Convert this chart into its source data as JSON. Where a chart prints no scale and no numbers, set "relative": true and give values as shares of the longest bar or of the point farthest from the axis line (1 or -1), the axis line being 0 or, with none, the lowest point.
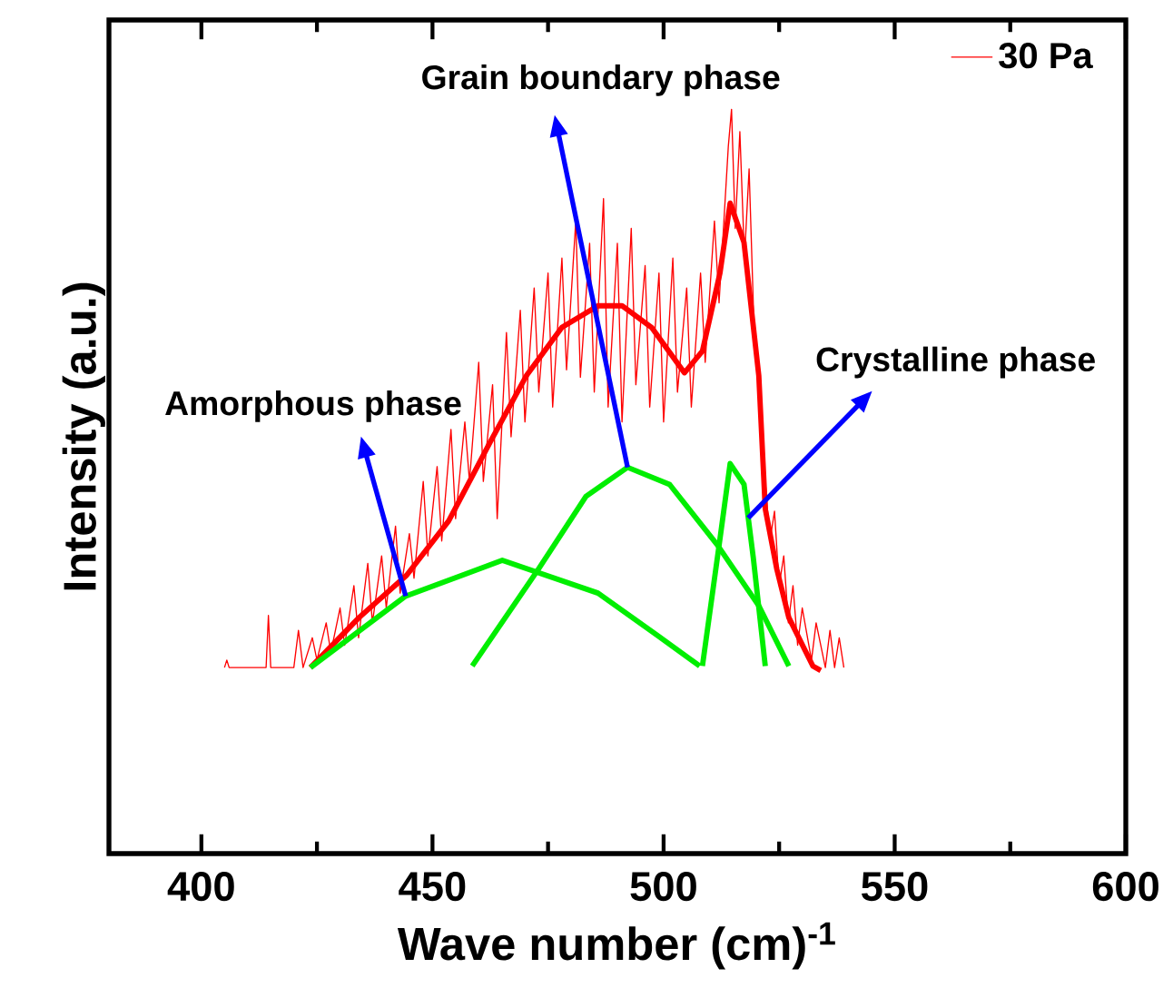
{
  "chart_data": {
    "type": "line",
    "relative": true,
    "xlabel": "Wave number (cm)$^{-1}$",
    "ylabel": "Intensity (a.u.)",
    "xlim": [
      380,
      600
    ],
    "xticks": [
      400,
      {
        "value": 425,
        "label": null
      },
      450,
      {
        "value": 475,
        "label": null
      },
      500,
      {
        "value": 525,
        "label": null
      },
      550,
      {
        "value": 575,
        "label": null
      },
      600
    ],
    "legend": "top right",
    "grid": false,
    "series": [
      {
        "name": "30 Pa",
        "color": "#ff0000",
        "x": [
          405,
          405.5,
          406,
          414,
          414.5,
          415,
          420,
          421,
          422,
          424,
          425,
          427,
          428,
          430,
          431,
          433,
          434,
          436,
          437,
          439,
          440,
          442,
          443,
          445,
          446,
          448,
          449,
          451,
          452,
          454,
          455,
          457,
          458,
          460,
          461,
          463,
          464,
          466,
          467,
          469,
          470,
          472,
          473,
          475,
          476,
          478,
          479,
          481,
          482,
          484,
          485,
          487,
          488,
          490,
          491,
          493,
          494,
          496,
          497,
          499,
          500,
          502,
          503,
          505,
          506,
          508,
          509,
          511,
          512,
          514,
          514.7,
          515.5,
          516.5,
          517.5,
          518.5,
          519.5,
          521,
          522,
          523,
          524,
          525,
          526,
          527,
          528,
          529,
          530,
          532,
          533,
          535,
          536,
          537,
          538,
          539
        ],
        "values": [
          0.25,
          0.26,
          0.25,
          0.25,
          0.32,
          0.25,
          0.25,
          0.3,
          0.25,
          0.29,
          0.26,
          0.31,
          0.27,
          0.33,
          0.28,
          0.36,
          0.29,
          0.39,
          0.31,
          0.4,
          0.33,
          0.44,
          0.35,
          0.43,
          0.37,
          0.5,
          0.4,
          0.52,
          0.42,
          0.57,
          0.45,
          0.58,
          0.5,
          0.66,
          0.5,
          0.63,
          0.45,
          0.7,
          0.56,
          0.73,
          0.58,
          0.76,
          0.62,
          0.78,
          0.6,
          0.8,
          0.65,
          0.85,
          0.64,
          0.82,
          0.62,
          0.88,
          0.6,
          0.82,
          0.58,
          0.84,
          0.63,
          0.79,
          0.6,
          0.78,
          0.58,
          0.8,
          0.62,
          0.76,
          0.6,
          0.78,
          0.66,
          0.85,
          0.74,
          0.95,
          1.0,
          0.84,
          0.97,
          0.8,
          0.92,
          0.72,
          0.6,
          0.5,
          0.42,
          0.46,
          0.36,
          0.4,
          0.31,
          0.36,
          0.28,
          0.33,
          0.26,
          0.31,
          0.25,
          0.3,
          0.25,
          0.29,
          0.25
        ]
      },
      {
        "color": "#ff0000",
        "x": [
          423.6,
          434.1,
          444.4,
          453.5,
          462.5,
          470.3,
          478,
          485.8,
          491,
          497.4,
          504.5,
          508.4,
          512.2,
          514.4,
          517.4,
          520.6,
          522,
          524.5,
          527.1,
          532.3,
          534
        ],
        "values": [
          0.25,
          0.317,
          0.374,
          0.447,
          0.553,
          0.642,
          0.707,
          0.736,
          0.736,
          0.707,
          0.646,
          0.675,
          0.78,
          0.874,
          0.821,
          0.642,
          0.463,
          0.382,
          0.317,
          0.252,
          0.246
        ]
      },
      {
        "color": "#00ee00",
        "x": [
          423.6,
          444.2,
          465.1,
          485.8,
          498.7,
          507.8
        ],
        "values": [
          0.25,
          0.346,
          0.394,
          0.35,
          0.293,
          0.252
        ]
      },
      {
        "color": "#00ee00",
        "x": [
          458.6,
          472.9,
          483.2,
          492.2,
          501.3,
          511.6,
          520.6,
          527.1
        ],
        "values": [
          0.252,
          0.382,
          0.48,
          0.519,
          0.496,
          0.415,
          0.333,
          0.252
        ]
      },
      {
        "color": "#00ee00",
        "x": [
          508.4,
          512.2,
          514.4,
          517.4,
          519.4,
          522
        ],
        "values": [
          0.252,
          0.423,
          0.524,
          0.496,
          0.398,
          0.252
        ]
      }
    ],
    "annotations": [
      {
        "text": "Amorphous phase",
        "x": 444.2,
        "y": 0.346
      },
      {
        "text": "Grain boundary phase",
        "x": 492.2,
        "y": 0.519
      },
      {
        "text": "Crystalline phase",
        "x": 518.3,
        "y": 0.451
      }
    ]
  }
}
